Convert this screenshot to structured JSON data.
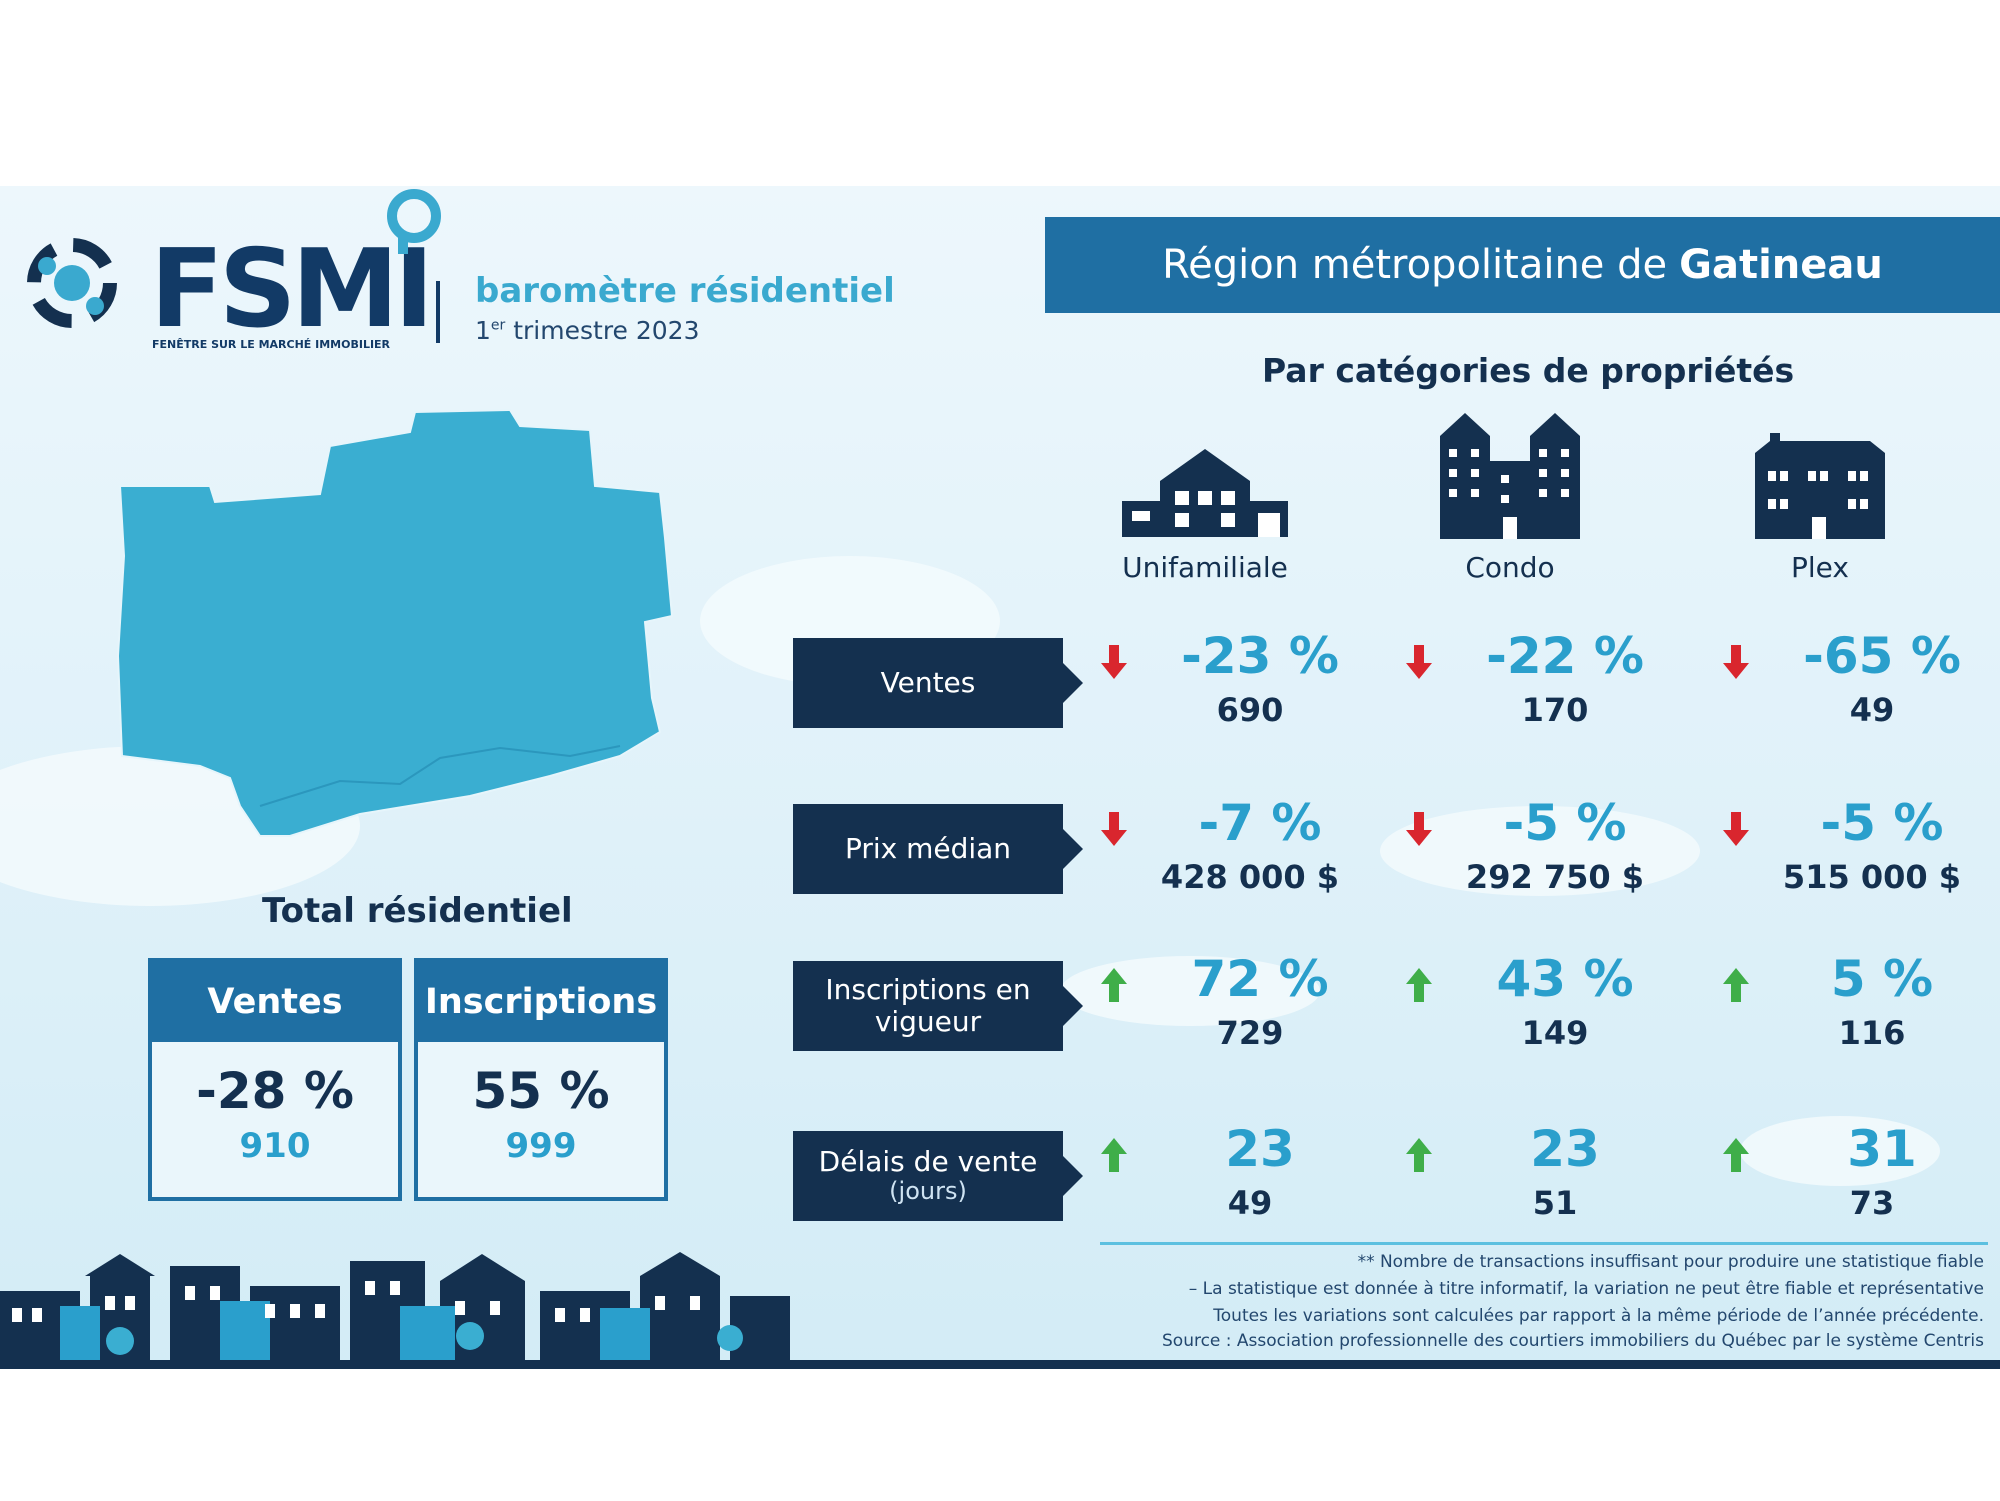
{
  "brand": {
    "logo_text": "FSMI",
    "logo_subtitle": "FENÊTRE SUR LE MARCHÉ IMMOBILIER",
    "title": "baromètre résidentiel",
    "period_ordinal": "1",
    "period_sup": "er",
    "period_rest": " trimestre 2023"
  },
  "region": {
    "prefix": "Région métropolitaine de",
    "name": "Gatineau"
  },
  "categories_title": "Par catégories de propriétés",
  "categories": [
    {
      "label": "Unifamiliale",
      "icon": "house-icon"
    },
    {
      "label": "Condo",
      "icon": "condo-building-icon"
    },
    {
      "label": "Plex",
      "icon": "plex-building-icon"
    }
  ],
  "total": {
    "title": "Total résidentiel",
    "ventes": {
      "label": "Ventes",
      "pct": "-28 %",
      "count": "910"
    },
    "inscriptions": {
      "label": "Inscriptions",
      "pct": "55 %",
      "count": "999"
    }
  },
  "metrics": [
    {
      "label": "Ventes",
      "sub": "",
      "cells": [
        {
          "dir": "down",
          "pct": "-23 %",
          "count": "690"
        },
        {
          "dir": "down",
          "pct": "-22 %",
          "count": "170"
        },
        {
          "dir": "down",
          "pct": "-65 %",
          "count": "49"
        }
      ]
    },
    {
      "label": "Prix médian",
      "sub": "",
      "cells": [
        {
          "dir": "down",
          "pct": "-7 %",
          "count": "428 000 $"
        },
        {
          "dir": "down",
          "pct": "-5 %",
          "count": "292 750 $"
        },
        {
          "dir": "down",
          "pct": "-5 %",
          "count": "515 000 $"
        }
      ]
    },
    {
      "label": "Inscriptions en vigueur",
      "sub": "",
      "cells": [
        {
          "dir": "up",
          "pct": "72 %",
          "count": "729"
        },
        {
          "dir": "up",
          "pct": "43 %",
          "count": "149"
        },
        {
          "dir": "up",
          "pct": "5 %",
          "count": "116"
        }
      ]
    },
    {
      "label": "Délais de vente",
      "sub": "(jours)",
      "cells": [
        {
          "dir": "up",
          "pct": "23",
          "count": "49"
        },
        {
          "dir": "up",
          "pct": "23",
          "count": "51"
        },
        {
          "dir": "up",
          "pct": "31",
          "count": "73"
        }
      ]
    }
  ],
  "footnotes": [
    "** Nombre de transactions insuffisant pour produire une statistique fiable",
    "– La statistique est donnée à titre informatif, la variation ne peut être fiable et représentative",
    "Toutes les variations sont calculées par rapport à la même période de l’année précédente.",
    "Source : Association professionnelle des courtiers immobiliers du Québec par le système Centris"
  ],
  "colors": {
    "up": "#3fae49",
    "down": "#d9262e",
    "navy": "#14304f",
    "accent": "#2a9fcc",
    "banner": "#1f6fa3"
  }
}
